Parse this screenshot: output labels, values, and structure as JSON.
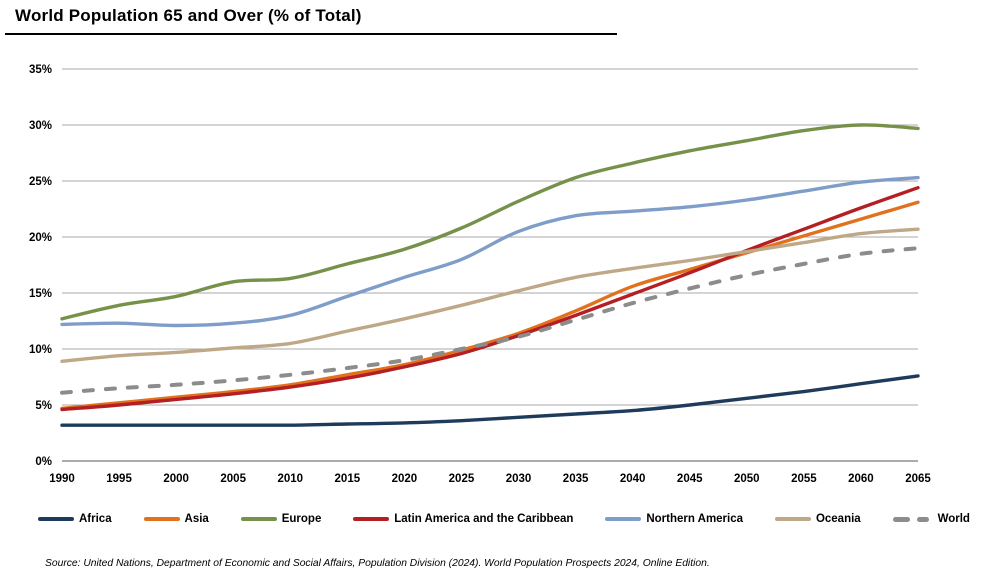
{
  "page": {
    "title": "World Population 65 and Over (% of Total)",
    "source": "Source: United Nations, Department of Economic and Social Affairs, Population Division (2024). World Population Prospects 2024, Online Edition."
  },
  "axes": {
    "y_tick_labels": [
      "0%",
      "5%",
      "10%",
      "15%",
      "20%",
      "25%",
      "30%",
      "35%"
    ],
    "x_tick_labels": [
      "1990",
      "1995",
      "2000",
      "2005",
      "2010",
      "2015",
      "2020",
      "2025",
      "2030",
      "2035",
      "2040",
      "2045",
      "2050",
      "2055",
      "2060",
      "2065"
    ]
  },
  "colors": {
    "africa": "#1f3b5c",
    "asia": "#e2711d",
    "europe": "#75914a",
    "latin_america": "#b41f24",
    "northern_america": "#7e9dc8",
    "oceania": "#bfa888",
    "world": "#8c8c8c",
    "gridline": "#a8a8a8",
    "baseline": "#8f8f8f"
  },
  "chart_data": {
    "type": "line",
    "title": "World Population 65 and Over (% of Total)",
    "xlabel": "",
    "ylabel": "",
    "ylim": [
      0,
      35
    ],
    "ytick_step": 5,
    "ytick_suffix": "%",
    "grid": "horizontal",
    "legend_position": "bottom",
    "x": [
      1990,
      1995,
      2000,
      2005,
      2010,
      2015,
      2020,
      2025,
      2030,
      2035,
      2040,
      2045,
      2050,
      2055,
      2060,
      2065
    ],
    "series": [
      {
        "name": "Africa",
        "key": "africa",
        "color": "#1f3b5c",
        "style": "solid",
        "values": [
          3.2,
          3.2,
          3.2,
          3.2,
          3.2,
          3.3,
          3.4,
          3.6,
          3.9,
          4.2,
          4.5,
          5.0,
          5.6,
          6.2,
          6.9,
          7.6
        ]
      },
      {
        "name": "Asia",
        "key": "asia",
        "color": "#e2711d",
        "style": "solid",
        "values": [
          4.7,
          5.2,
          5.7,
          6.2,
          6.8,
          7.7,
          8.6,
          9.9,
          11.4,
          13.4,
          15.6,
          17.1,
          18.6,
          20.1,
          21.6,
          23.1
        ]
      },
      {
        "name": "Europe",
        "key": "europe",
        "color": "#75914a",
        "style": "solid",
        "values": [
          12.7,
          13.9,
          14.7,
          16.0,
          16.3,
          17.6,
          18.9,
          20.8,
          23.2,
          25.3,
          26.6,
          27.7,
          28.6,
          29.5,
          30.0,
          29.7
        ]
      },
      {
        "name": "Latin America and the Caribbean",
        "key": "latin_america",
        "color": "#b41f24",
        "style": "solid",
        "values": [
          4.6,
          5.0,
          5.5,
          6.0,
          6.6,
          7.4,
          8.4,
          9.6,
          11.2,
          13.0,
          14.9,
          16.8,
          18.8,
          20.7,
          22.6,
          24.4
        ]
      },
      {
        "name": "Northern America",
        "key": "northern_america",
        "color": "#7e9dc8",
        "style": "solid",
        "values": [
          12.2,
          12.3,
          12.1,
          12.3,
          13.0,
          14.7,
          16.4,
          18.0,
          20.5,
          21.9,
          22.3,
          22.7,
          23.3,
          24.1,
          24.9,
          25.3
        ]
      },
      {
        "name": "Oceania",
        "key": "oceania",
        "color": "#bfa888",
        "style": "solid",
        "values": [
          8.9,
          9.4,
          9.7,
          10.1,
          10.5,
          11.6,
          12.7,
          13.9,
          15.2,
          16.4,
          17.2,
          17.9,
          18.7,
          19.5,
          20.3,
          20.7
        ]
      },
      {
        "name": "World",
        "key": "world",
        "color": "#8c8c8c",
        "style": "dashed",
        "values": [
          6.1,
          6.5,
          6.8,
          7.2,
          7.7,
          8.3,
          9.0,
          10.0,
          11.1,
          12.6,
          14.1,
          15.4,
          16.6,
          17.6,
          18.5,
          19.0
        ]
      }
    ]
  }
}
